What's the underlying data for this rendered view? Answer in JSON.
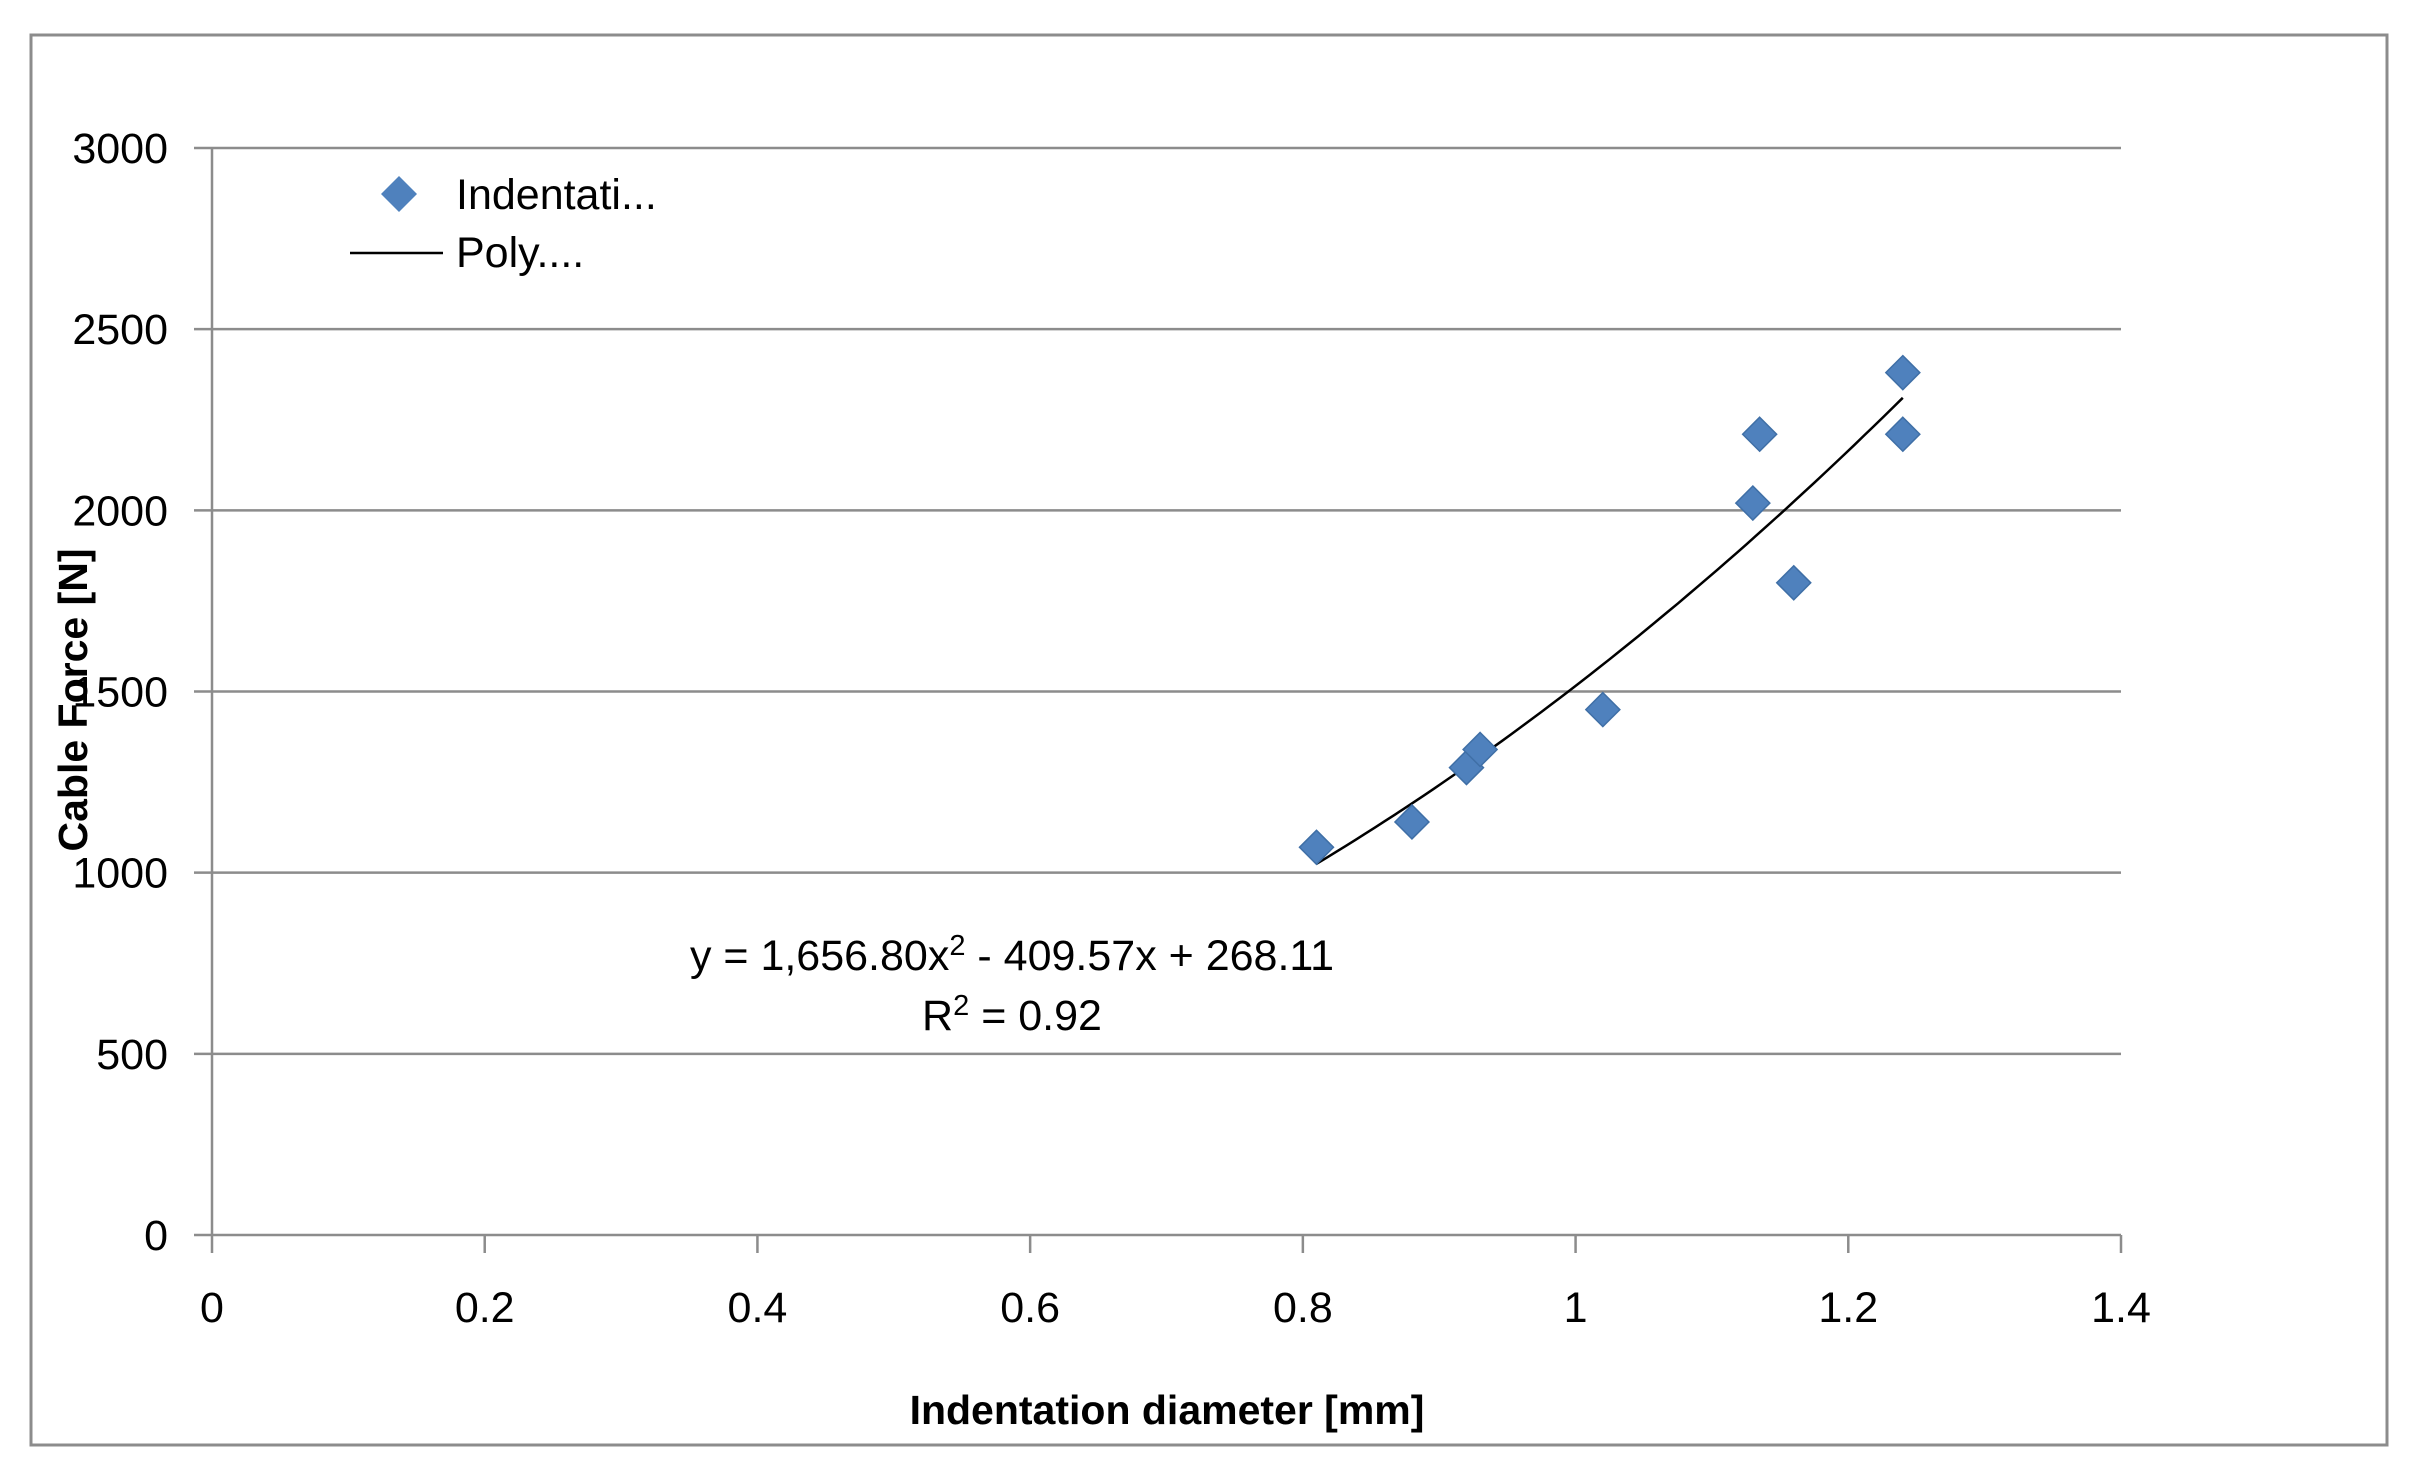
{
  "chart_data": {
    "type": "scatter",
    "title": "",
    "xlabel": "Indentation diameter [mm]",
    "ylabel": "Cable Force [N]",
    "xlim": [
      0,
      1.4
    ],
    "ylim": [
      0,
      3000
    ],
    "x_ticks": [
      0,
      0.2,
      0.4,
      0.6,
      0.8,
      1,
      1.2,
      1.4
    ],
    "x_tick_labels": [
      "0",
      "0.2",
      "0.4",
      "0.6",
      "0.8",
      "1",
      "1.2",
      "1.4"
    ],
    "y_ticks": [
      0,
      500,
      1000,
      1500,
      2000,
      2500,
      3000
    ],
    "y_tick_labels": [
      "0",
      "500",
      "1000",
      "1500",
      "2000",
      "2500",
      "3000"
    ],
    "grid": "horizontal",
    "legend_position": "top-left",
    "series": [
      {
        "name": "Indentati...",
        "kind": "scatter",
        "marker": "diamond",
        "color": "#4F81BD",
        "x": [
          0.81,
          0.88,
          0.92,
          0.93,
          1.02,
          1.13,
          1.135,
          1.16,
          1.24,
          1.24
        ],
        "y": [
          1070,
          1140,
          1290,
          1340,
          1450,
          2020,
          2210,
          1800,
          2380,
          2210
        ]
      },
      {
        "name": "Poly....",
        "kind": "trendline",
        "color": "#000000",
        "fit": "polynomial-2",
        "x_range": [
          0.81,
          1.24
        ]
      }
    ],
    "annotations": {
      "equation": {
        "prefix": "y = 1,656.80x",
        "exp": "2",
        "rest": " - 409.57x + 268.11"
      },
      "r_squared": {
        "prefix": "R",
        "exp": "2",
        "rest": " = 0.92"
      }
    }
  }
}
